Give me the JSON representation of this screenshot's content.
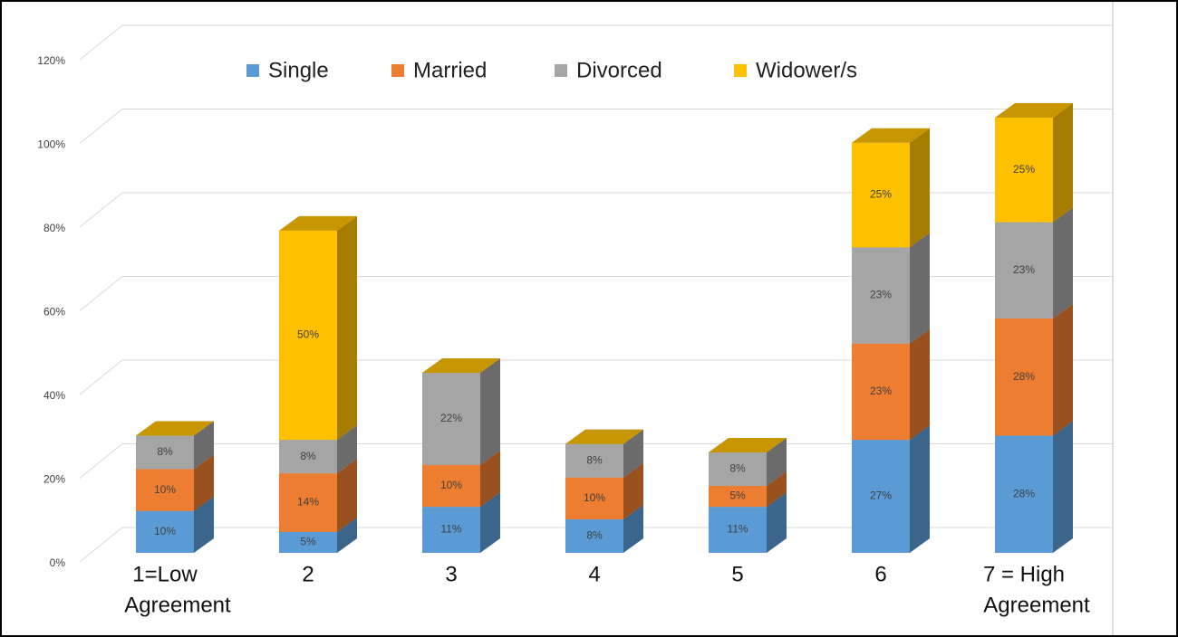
{
  "chart_data": {
    "type": "bar3d_stacked",
    "categories": [
      [
        "1=Low",
        "Agreement"
      ],
      [
        "2"
      ],
      [
        "3"
      ],
      [
        "4"
      ],
      [
        "5"
      ],
      [
        "6"
      ],
      [
        "7 = High",
        "Agreement"
      ]
    ],
    "series": [
      {
        "name": "Single",
        "color": "#5b9bd5",
        "values": [
          10,
          5,
          11,
          8,
          11,
          27,
          28
        ],
        "value_labels": [
          "10%",
          "5%",
          "11%",
          "8%",
          "11%",
          "27%",
          "28%"
        ]
      },
      {
        "name": "Married",
        "color": "#ed7d31",
        "values": [
          10,
          14,
          10,
          10,
          5,
          23,
          28
        ],
        "value_labels": [
          "10%",
          "14%",
          "10%",
          "10%",
          "5%",
          "23%",
          "28%"
        ]
      },
      {
        "name": "Divorced",
        "color": "#a5a5a5",
        "values": [
          8,
          8,
          22,
          8,
          8,
          23,
          23
        ],
        "value_labels": [
          "8%",
          "8%",
          "22%",
          "8%",
          "8%",
          "23%",
          "23%"
        ]
      },
      {
        "name": "Widower/s",
        "color": "#ffc000",
        "values": [
          0,
          50,
          0,
          0,
          0,
          25,
          25
        ],
        "value_labels": [
          null,
          "50%",
          null,
          null,
          null,
          "25%",
          "25%"
        ]
      }
    ],
    "ylim": [
      0,
      120
    ],
    "yticks": [
      {
        "value": 0,
        "label": "0%"
      },
      {
        "value": 20,
        "label": "20%"
      },
      {
        "value": 40,
        "label": "40%"
      },
      {
        "value": 60,
        "label": "60%"
      },
      {
        "value": 80,
        "label": "80%"
      },
      {
        "value": 100,
        "label": "100%"
      },
      {
        "value": 120,
        "label": "120%"
      }
    ],
    "grid": true,
    "legend": "top"
  }
}
